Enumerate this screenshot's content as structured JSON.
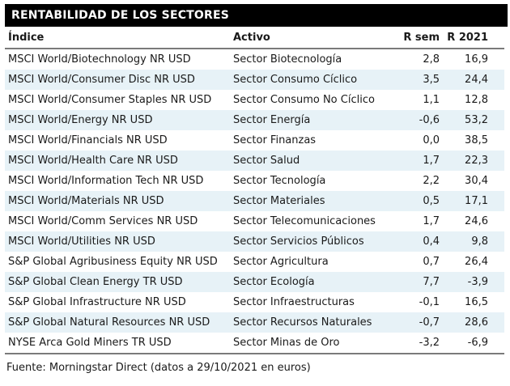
{
  "title": "RENTABILIDAD DE LOS SECTORES",
  "table": {
    "columns": [
      "Índice",
      "Activo",
      "R sem",
      "R 2021"
    ],
    "rows": [
      {
        "indice": "MSCI World/Biotechnology NR USD",
        "activo": "Sector Biotecnología",
        "r_sem": "2,8",
        "r_2021": "16,9"
      },
      {
        "indice": "MSCI World/Consumer Disc NR USD",
        "activo": "Sector Consumo Cíclico",
        "r_sem": "3,5",
        "r_2021": "24,4"
      },
      {
        "indice": "MSCI World/Consumer Staples NR USD",
        "activo": "Sector Consumo No Cíclico",
        "r_sem": "1,1",
        "r_2021": "12,8"
      },
      {
        "indice": "MSCI World/Energy NR USD",
        "activo": "Sector Energía",
        "r_sem": "-0,6",
        "r_2021": "53,2"
      },
      {
        "indice": "MSCI World/Financials NR USD",
        "activo": "Sector Finanzas",
        "r_sem": "0,0",
        "r_2021": "38,5"
      },
      {
        "indice": "MSCI World/Health Care NR USD",
        "activo": "Sector Salud",
        "r_sem": "1,7",
        "r_2021": "22,3"
      },
      {
        "indice": "MSCI World/Information Tech NR USD",
        "activo": "Sector Tecnología",
        "r_sem": "2,2",
        "r_2021": "30,4"
      },
      {
        "indice": "MSCI World/Materials NR USD",
        "activo": "Sector Materiales",
        "r_sem": "0,5",
        "r_2021": "17,1"
      },
      {
        "indice": "MSCI World/Comm Services NR USD",
        "activo": "Sector Telecomunicaciones",
        "r_sem": "1,7",
        "r_2021": "24,6"
      },
      {
        "indice": "MSCI World/Utilities NR USD",
        "activo": "Sector Servicios Públicos",
        "r_sem": "0,4",
        "r_2021": "9,8"
      },
      {
        "indice": "S&P Global Agribusiness Equity NR USD",
        "activo": "Sector Agricultura",
        "r_sem": "0,7",
        "r_2021": "26,4"
      },
      {
        "indice": "S&P Global Clean Energy TR USD",
        "activo": "Sector Ecología",
        "r_sem": "7,7",
        "r_2021": "-3,9"
      },
      {
        "indice": "S&P Global Infrastructure NR USD",
        "activo": "Sector Infraestructuras",
        "r_sem": "-0,1",
        "r_2021": "16,5"
      },
      {
        "indice": "S&P Global Natural Resources NR USD",
        "activo": "Sector Recursos Naturales",
        "r_sem": "-0,7",
        "r_2021": "28,6"
      },
      {
        "indice": "NYSE Arca Gold Miners TR USD",
        "activo": "Sector Minas de Oro",
        "r_sem": "-3,2",
        "r_2021": "-6,9"
      }
    ]
  },
  "footer": {
    "source": "Fuente: Morningstar Direct (datos a 29/10/2021 en euros)"
  },
  "colors": {
    "title_bar_background": "#000000",
    "title_text": "#ffffff",
    "row_stripe": "#e7f2f7",
    "rule_line": "#7a7a7a",
    "body_text": "#1a1a1a"
  }
}
